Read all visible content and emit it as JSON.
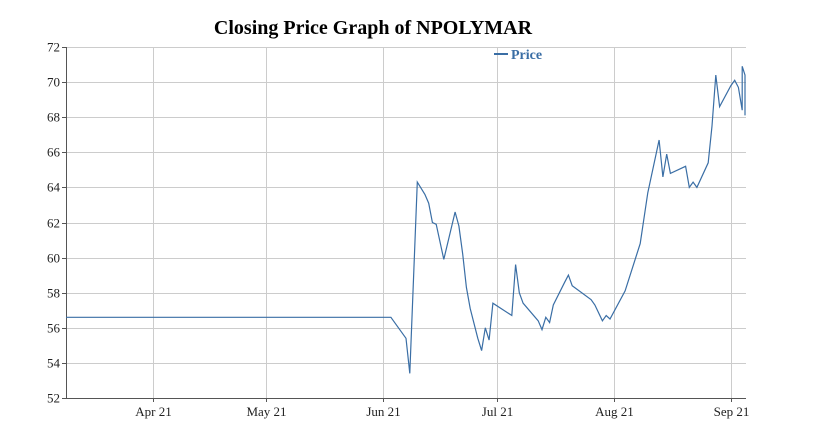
{
  "colors": {
    "line": "#3a6ea5",
    "grid": "#cccccc",
    "axis": "#555555",
    "text": "#222222",
    "legend_text": "#3a6ea5"
  },
  "chart_data": {
    "type": "line",
    "title": "Closing Price Graph of NPOLYMAR",
    "xlabel": "",
    "ylabel": "",
    "ylim": [
      52,
      72
    ],
    "yticks": [
      52,
      54,
      56,
      58,
      60,
      62,
      64,
      66,
      68,
      70,
      72
    ],
    "xlim": [
      "2021-03-09",
      "2021-09-05"
    ],
    "xticks": [
      {
        "date": "2021-04-01",
        "label": "Apr 21"
      },
      {
        "date": "2021-05-01",
        "label": "May 21"
      },
      {
        "date": "2021-06-01",
        "label": "Jun 21"
      },
      {
        "date": "2021-07-01",
        "label": "Jul 21"
      },
      {
        "date": "2021-08-01",
        "label": "Aug 21"
      },
      {
        "date": "2021-09-01",
        "label": "Sep 21"
      }
    ],
    "grid": true,
    "legend": {
      "placement": "top-right",
      "entries": [
        "Price"
      ]
    },
    "series": [
      {
        "name": "Price",
        "points": [
          [
            "2021-03-09",
            56.6
          ],
          [
            "2021-06-03",
            56.6
          ],
          [
            "2021-06-07",
            55.4
          ],
          [
            "2021-06-08",
            53.4
          ],
          [
            "2021-06-10",
            64.3
          ],
          [
            "2021-06-12",
            63.6
          ],
          [
            "2021-06-13",
            63.1
          ],
          [
            "2021-06-14",
            62.0
          ],
          [
            "2021-06-15",
            61.9
          ],
          [
            "2021-06-17",
            59.9
          ],
          [
            "2021-06-20",
            62.6
          ],
          [
            "2021-06-21",
            61.8
          ],
          [
            "2021-06-22",
            60.2
          ],
          [
            "2021-06-23",
            58.3
          ],
          [
            "2021-06-24",
            57.1
          ],
          [
            "2021-06-26",
            55.4
          ],
          [
            "2021-06-27",
            54.7
          ],
          [
            "2021-06-28",
            56.0
          ],
          [
            "2021-06-29",
            55.3
          ],
          [
            "2021-06-30",
            57.4
          ],
          [
            "2021-07-05",
            56.7
          ],
          [
            "2021-07-06",
            59.6
          ],
          [
            "2021-07-07",
            58.0
          ],
          [
            "2021-07-08",
            57.4
          ],
          [
            "2021-07-12",
            56.4
          ],
          [
            "2021-07-13",
            55.9
          ],
          [
            "2021-07-14",
            56.6
          ],
          [
            "2021-07-15",
            56.3
          ],
          [
            "2021-07-16",
            57.3
          ],
          [
            "2021-07-19",
            58.6
          ],
          [
            "2021-07-20",
            59.0
          ],
          [
            "2021-07-21",
            58.4
          ],
          [
            "2021-07-26",
            57.6
          ],
          [
            "2021-07-27",
            57.3
          ],
          [
            "2021-07-29",
            56.4
          ],
          [
            "2021-07-30",
            56.7
          ],
          [
            "2021-07-31",
            56.5
          ],
          [
            "2021-08-04",
            58.1
          ],
          [
            "2021-08-08",
            60.8
          ],
          [
            "2021-08-10",
            63.7
          ],
          [
            "2021-08-13",
            66.7
          ],
          [
            "2021-08-14",
            64.6
          ],
          [
            "2021-08-15",
            65.9
          ],
          [
            "2021-08-16",
            64.8
          ],
          [
            "2021-08-20",
            65.2
          ],
          [
            "2021-08-21",
            64.0
          ],
          [
            "2021-08-22",
            64.3
          ],
          [
            "2021-08-23",
            64.0
          ],
          [
            "2021-08-26",
            65.4
          ],
          [
            "2021-08-27",
            67.5
          ],
          [
            "2021-08-28",
            70.4
          ],
          [
            "2021-08-29",
            68.6
          ],
          [
            "2021-09-01",
            69.8
          ],
          [
            "2021-09-02",
            70.1
          ],
          [
            "2021-09-03",
            69.7
          ],
          [
            "2021-09-04",
            68.4
          ],
          [
            "2021-09-04",
            70.9
          ],
          [
            "2021-09-05",
            70.4
          ],
          [
            "2021-09-06",
            69.6
          ],
          [
            "2021-09-06",
            68.1
          ]
        ]
      }
    ]
  }
}
